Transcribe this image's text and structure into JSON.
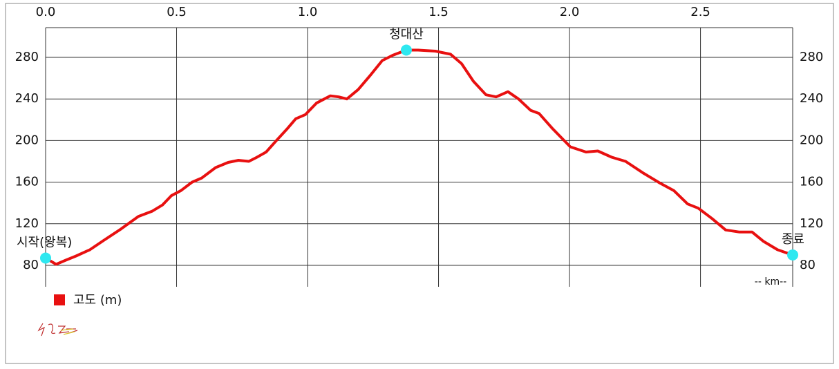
{
  "chart_data": {
    "type": "line",
    "x": [
      0.0,
      0.04,
      0.077,
      0.116,
      0.169,
      0.222,
      0.288,
      0.354,
      0.406,
      0.446,
      0.48,
      0.517,
      0.559,
      0.596,
      0.649,
      0.697,
      0.736,
      0.776,
      0.807,
      0.842,
      0.881,
      0.921,
      0.955,
      0.992,
      1.034,
      1.087,
      1.119,
      1.15,
      1.193,
      1.237,
      1.285,
      1.325,
      1.377,
      1.422,
      1.488,
      1.546,
      1.588,
      1.633,
      1.681,
      1.72,
      1.765,
      1.805,
      1.852,
      1.884,
      1.937,
      2.003,
      2.063,
      2.108,
      2.161,
      2.214,
      2.28,
      2.346,
      2.398,
      2.451,
      2.491,
      2.544,
      2.596,
      2.649,
      2.697,
      2.741,
      2.794,
      2.852
    ],
    "series": [
      {
        "name": "고도 (m)",
        "color": "#e81010",
        "values": [
          87,
          81,
          85,
          89,
          95,
          104,
          115,
          127,
          132,
          138,
          147,
          152,
          160,
          164,
          174,
          179,
          181,
          180,
          184,
          189,
          200,
          211,
          221,
          225,
          236,
          243,
          242,
          240,
          249,
          262,
          277,
          282,
          287,
          287,
          286,
          283,
          274,
          257,
          244,
          242,
          247,
          240,
          229,
          226,
          211,
          194,
          189,
          190,
          184,
          180,
          169,
          159,
          152,
          139,
          135,
          125,
          114,
          112,
          112,
          103,
          95,
          90
        ]
      }
    ],
    "markers": [
      {
        "label": "시작(왕복)",
        "x": 0.0,
        "y": 87,
        "color": "#2ee8f0"
      },
      {
        "label": "청대산",
        "x": 1.377,
        "y": 287,
        "color": "#2ee8f0"
      },
      {
        "label": "종료",
        "x": 2.852,
        "y": 90,
        "color": "#2ee8f0"
      }
    ],
    "xlim": [
      0,
      2.852
    ],
    "ylim": [
      59.4,
      308.6
    ],
    "xticks": [
      {
        "value": 0,
        "label": "0.0"
      },
      0.5,
      {
        "value": 1,
        "label": "1.0"
      },
      1.5,
      {
        "value": 2,
        "label": "2.0"
      },
      2.5
    ],
    "yticks": [
      80,
      120,
      160,
      200,
      240,
      280
    ],
    "x_unit_label": "-- km--",
    "grid": true
  }
}
